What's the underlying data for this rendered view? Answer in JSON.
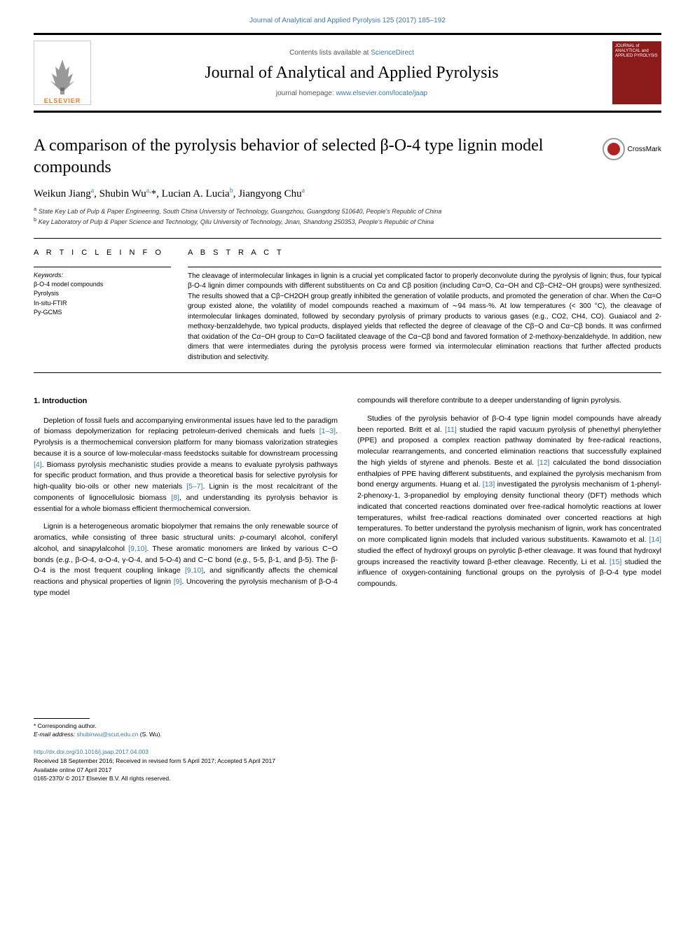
{
  "top_link": "Journal of Analytical and Applied Pyrolysis 125 (2017) 185–192",
  "header": {
    "contents_prefix": "Contents lists available at ",
    "contents_link": "ScienceDirect",
    "journal_name": "Journal of Analytical and Applied Pyrolysis",
    "homepage_prefix": "journal homepage: ",
    "homepage_link": "www.elsevier.com/locate/jaap",
    "elsevier_label": "ELSEVIER",
    "cover_text": "JOURNAL of ANALYTICAL and APPLIED PYROLYSIS"
  },
  "crossmark_label": "CrossMark",
  "title": "A comparison of the pyrolysis behavior of selected β-O-4 type lignin model compounds",
  "authors_html": "Weikun Jiang<sup>a</sup>, Shubin Wu<sup>a,</sup>*, Lucian A. Lucia<sup>b</sup>, Jiangyong Chu<sup>a</sup>",
  "affiliations": {
    "a": "State Key Lab of Pulp & Paper Engineering, South China University of Technology, Guangzhou, Guangdong 510640, People's Republic of China",
    "b": "Key Laboratory of Pulp & Paper Science and Technology, Qilu University of Technology, Jinan, Shandong 250353, People's Republic of China"
  },
  "article_info_heading": "A R T I C L E  I N F O",
  "keywords_label": "Keywords:",
  "keywords": [
    "β-O-4 model compounds",
    "Pyrolysis",
    "In-situ-FTIR",
    "Py-GCMS"
  ],
  "abstract_heading": "A B S T R A C T",
  "abstract": "The cleavage of intermolecular linkages in lignin is a crucial yet complicated factor to properly deconvolute during the pyrolysis of lignin; thus, four typical β-O-4 lignin dimer compounds with different substituents on Cα and Cβ position (including Cα=O, Cα−OH and Cβ−CH2−OH groups) were synthesized. The results showed that a Cβ−CH2OH group greatly inhibited the generation of volatile products, and promoted the generation of char. When the Cα=O group existed alone, the volatility of model compounds reached a maximum of ∼94 mass-%. At low temperatures (< 300 °C), the cleavage of intermolecular linkages dominated, followed by secondary pyrolysis of primary products to various gases (e.g., CO2, CH4, CO). Guaiacol and 2-methoxy-benzaldehyde, two typical products, displayed yields that reflected the degree of cleavage of the Cβ−O and Cα−Cβ bonds. It was confirmed that oxidation of the Cα−OH group to Cα=O facilitated cleavage of the Cα−Cβ bond and favored formation of 2-methoxy-benzaldehyde. In addition, new dimers that were intermediates during the pyrolysis process were formed via intermolecular elimination reactions that further affected products distribution and selectivity.",
  "intro_heading": "1. Introduction",
  "body": {
    "col1": [
      "Depletion of fossil fuels and accompanying environmental issues have led to the paradigm of biomass depolymerization for replacing petroleum-derived chemicals and fuels <span class='ref-link'>[1–3]</span>. Pyrolysis is a thermochemical conversion platform for many biomass valorization strategies because it is a source of low-molecular-mass feedstocks suitable for downstream processing <span class='ref-link'>[4]</span>. Biomass pyrolysis mechanistic studies provide a means to evaluate pyrolysis pathways for specific product formation, and thus provide a theoretical basis for selective pyrolysis for high-quality bio-oils or other new materials <span class='ref-link'>[5–7]</span>. Lignin is the most recalcitrant of the components of lignocellulosic biomass <span class='ref-link'>[8]</span>, and understanding its pyrolysis behavior is essential for a whole biomass efficient thermochemical conversion.",
      "Lignin is a heterogeneous aromatic biopolymer that remains the only renewable source of aromatics, while consisting of three basic structural units: <i>p</i>-coumaryl alcohol, coniferyl alcohol, and sinapylalcohol <span class='ref-link'>[9,10]</span>. These aromatic monomers are linked by various C−O bonds (<i>e.g.</i>, β-O-4, α-O-4, γ-O-4, and 5-O-4) and C−C bond (<i>e.g.</i>, 5-5, β-1, and β-5). The β-O-4 is the most frequent coupling linkage <span class='ref-link'>[9,10]</span>, and significantly affects the chemical reactions and physical properties of lignin <span class='ref-link'>[9]</span>. Uncovering the pyrolysis mechanism of β-O-4 type model"
    ],
    "col2": [
      "compounds will therefore contribute to a deeper understanding of lignin pyrolysis.",
      "Studies of the pyrolysis behavior of β-O-4 type lignin model compounds have already been reported. Britt et al. <span class='ref-link'>[11]</span> studied the rapid vacuum pyrolysis of phenethyl phenylether (PPE) and proposed a complex reaction pathway dominated by free-radical reactions, molecular rearrangements, and concerted elimination reactions that successfully explained the high yields of styrene and phenols. Beste et al. <span class='ref-link'>[12]</span> calculated the bond dissociation enthalpies of PPE having different substituents, and explained the pyrolysis mechanism from bond energy arguments. Huang et al. <span class='ref-link'>[13]</span> investigated the pyrolysis mechanism of 1-phenyl-2-phenoxy-1, 3-propanediol by employing density functional theory (DFT) methods which indicated that concerted reactions dominated over free-radical homolytic reactions at lower temperatures, whilst free-radical reactions dominated over concerted reactions at high temperatures. To better understand the pyrolysis mechanism of lignin, work has concentrated on more complicated lignin models that included various substituents. Kawamoto et al. <span class='ref-link'>[14]</span> studied the effect of hydroxyl groups on pyrolytic β-ether cleavage. It was found that hydroxyl groups increased the reactivity toward β-ether cleavage. Recently, Li et al. <span class='ref-link'>[15]</span> studied the influence of oxygen-containing functional groups on the pyrolysis of β-O-4 type model compounds."
    ]
  },
  "footer": {
    "corresponding": "* Corresponding author.",
    "email_label": "E-mail address: ",
    "email": "shubinwu@scut.edu.cn",
    "email_suffix": " (S. Wu).",
    "doi": "http://dx.doi.org/10.1016/j.jaap.2017.04.003",
    "received": "Received 18 September 2016; Received in revised form 5 April 2017; Accepted 5 April 2017",
    "available": "Available online 07 April 2017",
    "copyright": "0165-2370/ © 2017 Elsevier B.V. All rights reserved."
  },
  "colors": {
    "link": "#3b7aa6",
    "elsevier_orange": "#f47920",
    "cover_bg": "#8b1a1a",
    "crossmark_red": "#b22222"
  }
}
